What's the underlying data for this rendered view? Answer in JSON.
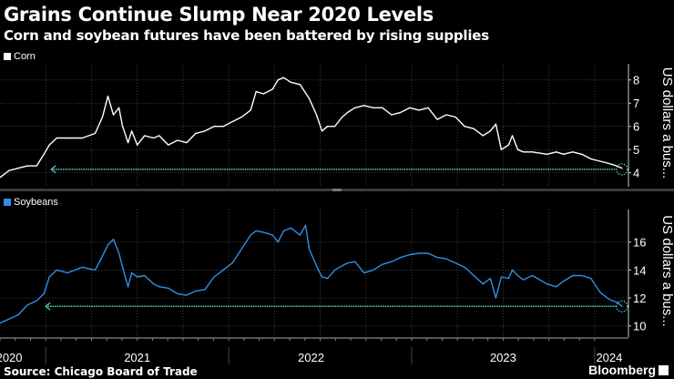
{
  "title": "Grains Continue Slump Near 2020 Levels",
  "subtitle": "Corn and soybean futures have been battered by rising supplies",
  "source": "Source: Chicago Board of Trade",
  "brand": "Bloomberg",
  "colors": {
    "corn": "#ffffff",
    "soybeans": "#2f8fe8",
    "reference": "#5ad1c8",
    "grid": "#555555"
  },
  "chart_data": [
    {
      "type": "line",
      "legend": "Corn",
      "ylabel": "US dollars a bus...",
      "ylim": [
        3.4,
        8.5
      ],
      "yticks": [
        4,
        5,
        6,
        7,
        8
      ],
      "xlim": [
        2020.75,
        2024.17
      ],
      "reference_level": 4.15,
      "reference_from": 2021.03,
      "x": [
        2020.75,
        2020.8,
        2020.85,
        2020.9,
        2020.95,
        2020.99,
        2021.02,
        2021.06,
        2021.12,
        2021.2,
        2021.27,
        2021.31,
        2021.34,
        2021.37,
        2021.4,
        2021.42,
        2021.45,
        2021.47,
        2021.5,
        2021.54,
        2021.59,
        2021.62,
        2021.67,
        2021.72,
        2021.77,
        2021.82,
        2021.87,
        2021.92,
        2021.97,
        2022.02,
        2022.07,
        2022.12,
        2022.15,
        2022.19,
        2022.24,
        2022.27,
        2022.3,
        2022.34,
        2022.39,
        2022.44,
        2022.48,
        2022.51,
        2022.54,
        2022.58,
        2022.62,
        2022.65,
        2022.69,
        2022.74,
        2022.79,
        2022.84,
        2022.89,
        2022.94,
        2022.99,
        2023.04,
        2023.09,
        2023.14,
        2023.19,
        2023.24,
        2023.29,
        2023.34,
        2023.39,
        2023.43,
        2023.46,
        2023.49,
        2023.53,
        2023.55,
        2023.58,
        2023.61,
        2023.66,
        2023.74,
        2023.79,
        2023.83,
        2023.88,
        2023.93,
        2023.98,
        2024.03,
        2024.08,
        2024.12,
        2024.15
      ],
      "values": [
        3.8,
        4.1,
        4.2,
        4.3,
        4.3,
        4.8,
        5.2,
        5.5,
        5.5,
        5.5,
        5.7,
        6.4,
        7.3,
        6.5,
        6.8,
        6.0,
        5.3,
        5.8,
        5.2,
        5.6,
        5.5,
        5.6,
        5.2,
        5.4,
        5.3,
        5.7,
        5.8,
        6.0,
        6.0,
        6.2,
        6.4,
        6.7,
        7.5,
        7.4,
        7.6,
        8.0,
        8.1,
        7.9,
        7.8,
        7.2,
        6.5,
        5.8,
        6.0,
        6.0,
        6.4,
        6.6,
        6.8,
        6.9,
        6.8,
        6.8,
        6.5,
        6.6,
        6.8,
        6.7,
        6.8,
        6.3,
        6.5,
        6.4,
        6.0,
        5.9,
        5.6,
        5.8,
        6.1,
        5.0,
        5.2,
        5.6,
        5.0,
        4.9,
        4.9,
        4.8,
        4.9,
        4.8,
        4.9,
        4.8,
        4.6,
        4.5,
        4.4,
        4.3,
        4.2
      ]
    },
    {
      "type": "line",
      "legend": "Soybeans",
      "ylabel": "US dollars a bus...",
      "ylim": [
        9.2,
        18
      ],
      "yticks": [
        10,
        12,
        14,
        16
      ],
      "xlim": [
        2020.75,
        2024.17
      ],
      "reference_level": 11.4,
      "reference_from": 2021.0,
      "x": [
        2020.75,
        2020.8,
        2020.85,
        2020.9,
        2020.95,
        2020.99,
        2021.02,
        2021.06,
        2021.12,
        2021.2,
        2021.27,
        2021.31,
        2021.34,
        2021.37,
        2021.4,
        2021.42,
        2021.45,
        2021.47,
        2021.5,
        2021.54,
        2021.59,
        2021.62,
        2021.67,
        2021.72,
        2021.77,
        2021.82,
        2021.87,
        2021.92,
        2021.97,
        2022.02,
        2022.07,
        2022.12,
        2022.15,
        2022.19,
        2022.24,
        2022.27,
        2022.3,
        2022.34,
        2022.39,
        2022.42,
        2022.44,
        2022.48,
        2022.51,
        2022.54,
        2022.58,
        2022.62,
        2022.65,
        2022.69,
        2022.74,
        2022.79,
        2022.84,
        2022.89,
        2022.94,
        2022.99,
        2023.04,
        2023.09,
        2023.14,
        2023.19,
        2023.24,
        2023.29,
        2023.34,
        2023.39,
        2023.43,
        2023.46,
        2023.49,
        2023.53,
        2023.55,
        2023.58,
        2023.61,
        2023.66,
        2023.74,
        2023.79,
        2023.83,
        2023.88,
        2023.93,
        2023.98,
        2024.03,
        2024.08,
        2024.12,
        2024.15
      ],
      "values": [
        10.2,
        10.5,
        10.8,
        11.5,
        11.8,
        12.3,
        13.5,
        14.0,
        13.8,
        14.2,
        14.0,
        15.0,
        15.8,
        16.2,
        15.2,
        14.2,
        12.8,
        13.8,
        13.5,
        13.6,
        13.0,
        12.8,
        12.7,
        12.3,
        12.2,
        12.5,
        12.6,
        13.5,
        14.0,
        14.5,
        15.5,
        16.5,
        16.8,
        16.7,
        16.5,
        16.0,
        16.8,
        17.0,
        16.5,
        17.2,
        15.5,
        14.3,
        13.5,
        13.4,
        14.0,
        14.3,
        14.5,
        14.6,
        13.8,
        14.0,
        14.4,
        14.6,
        14.9,
        15.1,
        15.2,
        15.2,
        14.9,
        14.8,
        14.5,
        14.2,
        13.6,
        13.0,
        13.4,
        12.0,
        13.5,
        13.4,
        14.0,
        13.6,
        13.3,
        13.6,
        13.0,
        12.8,
        13.2,
        13.6,
        13.6,
        13.4,
        12.4,
        11.9,
        11.7,
        11.4
      ]
    }
  ],
  "x_axis": {
    "labels": [
      {
        "text": "2020",
        "at": 2020.8
      },
      {
        "text": "2021",
        "at": 2021.5
      },
      {
        "text": "2022",
        "at": 2022.45
      },
      {
        "text": "2023",
        "at": 2023.5
      },
      {
        "text": "2024",
        "at": 2024.08
      }
    ],
    "year_dividers": [
      2021,
      2022,
      2023,
      2024
    ]
  }
}
